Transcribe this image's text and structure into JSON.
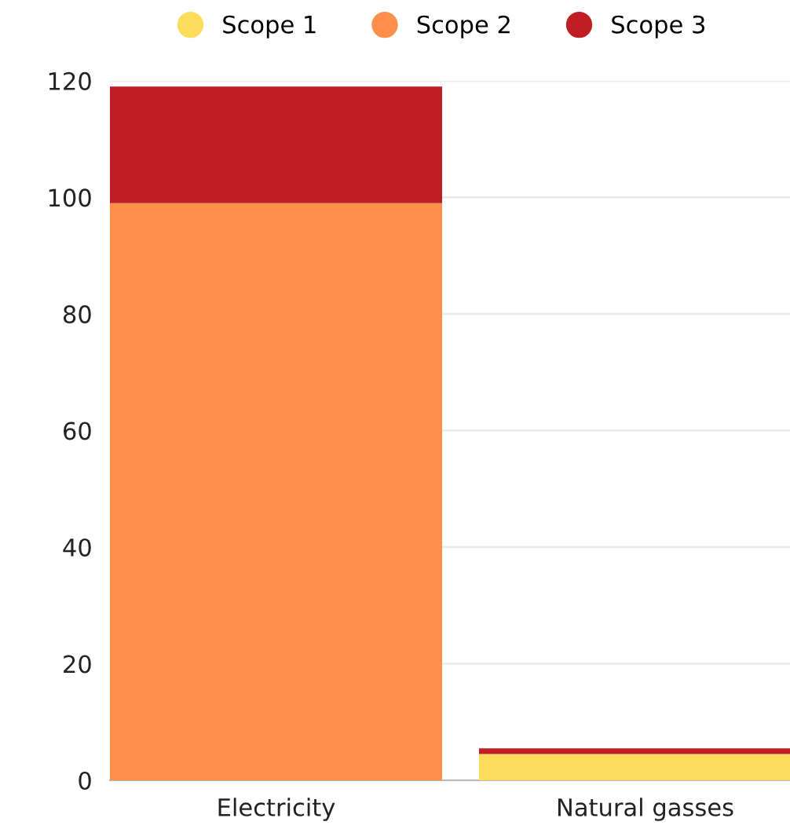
{
  "chart_data": {
    "type": "bar",
    "stacked": true,
    "categories": [
      "Electricity",
      "Natural gasses"
    ],
    "series": [
      {
        "name": "Scope 1",
        "color": "#fddc5c",
        "values": [
          0,
          4.5
        ]
      },
      {
        "name": "Scope 2",
        "color": "#fd8f4a",
        "values": [
          99,
          0
        ]
      },
      {
        "name": "Scope 3",
        "color": "#bf1e24",
        "values": [
          20,
          1
        ]
      }
    ],
    "ylim": [
      0,
      120
    ],
    "yticks": [
      0,
      20,
      40,
      60,
      80,
      100,
      120
    ],
    "grid": "y",
    "legend": "top"
  }
}
